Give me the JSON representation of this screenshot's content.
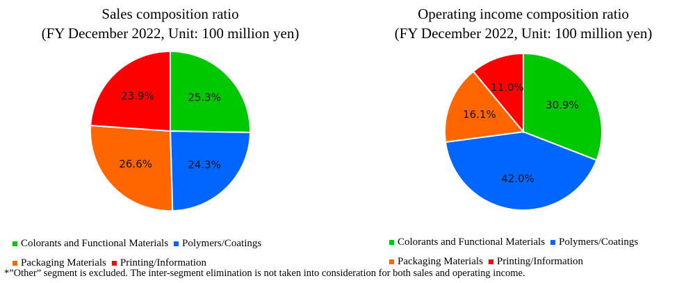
{
  "chart_data": [
    {
      "type": "pie",
      "title": [
        "Sales composition ratio",
        "(FY December 2022, Unit: 100 million yen)"
      ],
      "categories": [
        "Colorants and Functional Materials",
        "Polymers/Coatings",
        "Packaging Materials",
        "Printing/Information"
      ],
      "values": [
        25.3,
        24.3,
        26.6,
        23.9
      ],
      "labels": [
        "25.3%",
        "24.3%",
        "26.6%",
        "23.9%"
      ],
      "colors": [
        "#00C800",
        "#0066FF",
        "#FF6600",
        "#FF0000"
      ],
      "start": "top",
      "direction": "clockwise",
      "legend": "bottom"
    },
    {
      "type": "pie",
      "title": [
        "Operating income composition ratio",
        "(FY December 2022, Unit: 100 million yen)"
      ],
      "categories": [
        "Colorants and Functional Materials",
        "Polymers/Coatings",
        "Packaging Materials",
        "Printing/Information"
      ],
      "values": [
        30.9,
        42.0,
        16.1,
        11.0
      ],
      "labels": [
        "30.9%",
        "42.0%",
        "16.1%",
        "11.0%"
      ],
      "colors": [
        "#00C800",
        "#0066FF",
        "#FF6600",
        "#FF0000"
      ],
      "start": "top",
      "direction": "clockwise",
      "legend": "bottom"
    }
  ],
  "footnote": "*”Other” segment is excluded. The inter-segment elimination is not taken into consideration for both sales and operating income."
}
